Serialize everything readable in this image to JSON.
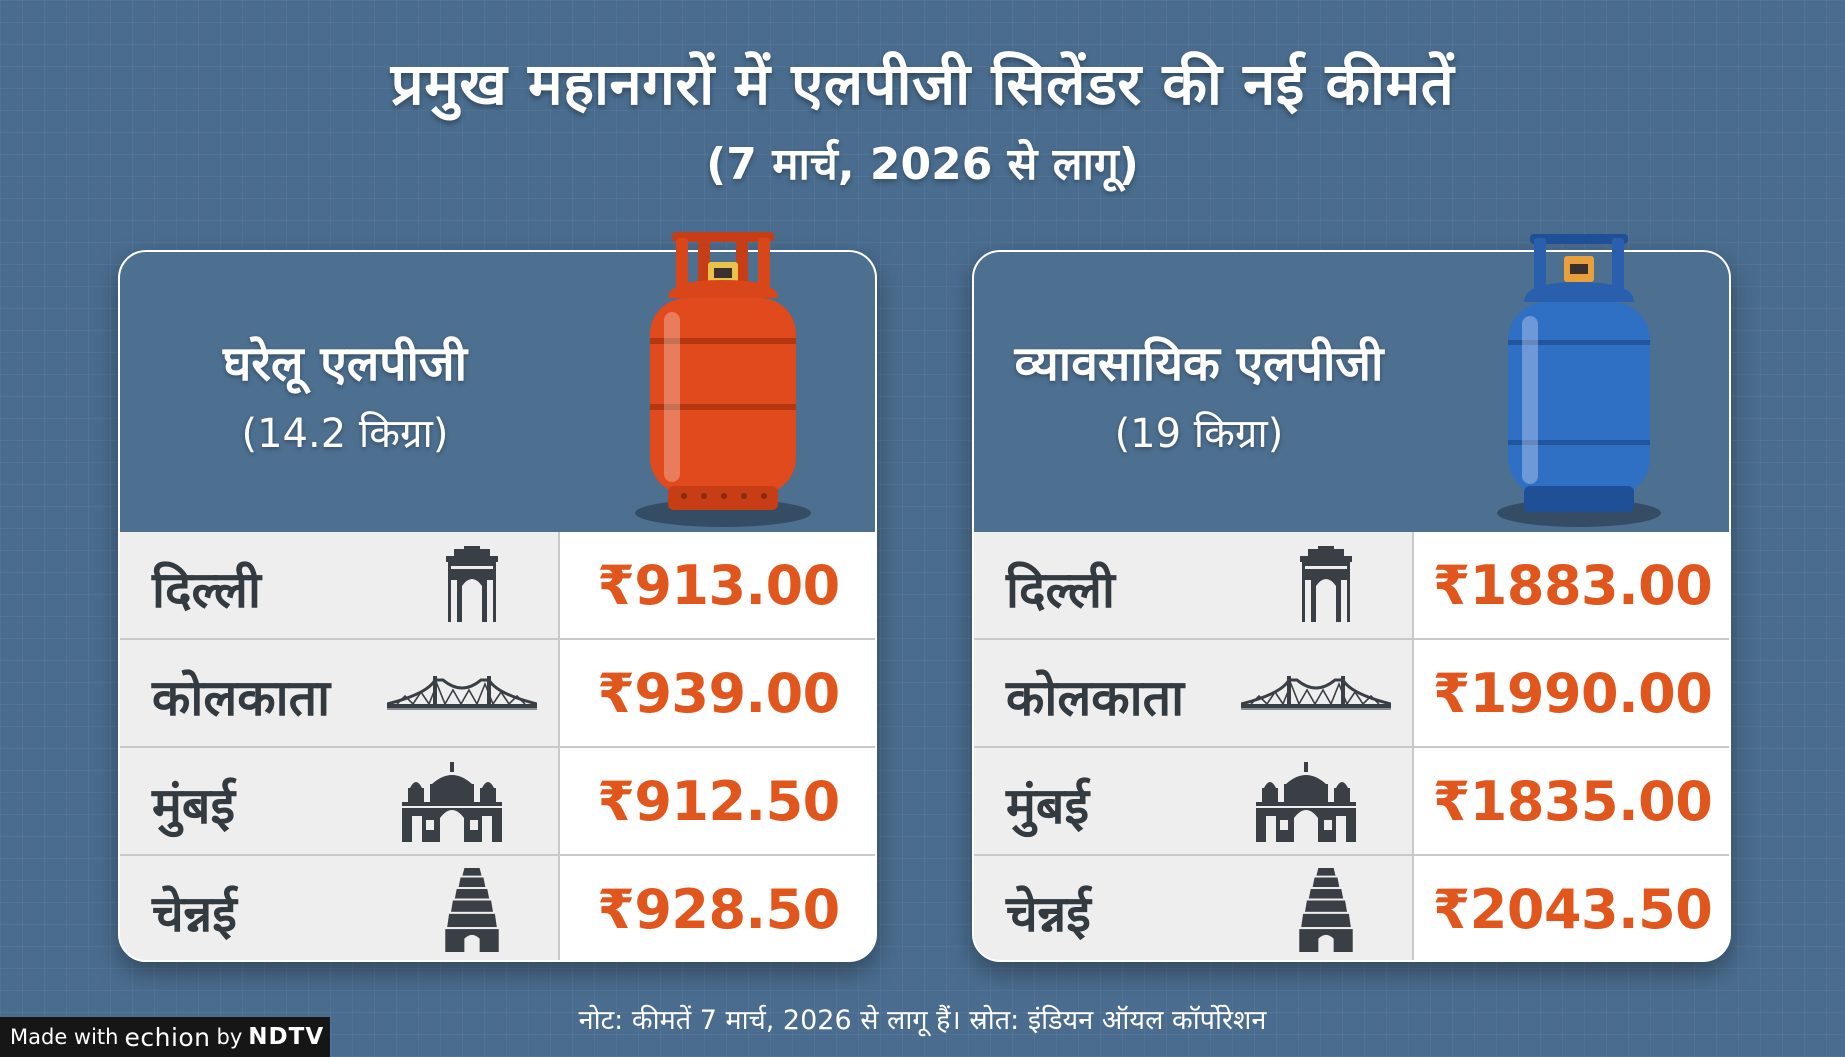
{
  "header": {
    "title": "प्रमुख महानगरों में एलपीजी सिलेंडर की नई कीमतें",
    "subtitle": "(7 मार्च, 2026 से लागू)"
  },
  "cards": [
    {
      "title": "घरेलू एलपीजी",
      "weight": "(14.2 किग्रा)",
      "cylinder_color": "#e04a1c",
      "rows": [
        {
          "city": "दिल्ली",
          "price": "₹913.00",
          "icon": "india-gate-icon"
        },
        {
          "city": "कोलकाता",
          "price": "₹939.00",
          "icon": "howrah-bridge-icon"
        },
        {
          "city": "मुंबई",
          "price": "₹912.50",
          "icon": "gateway-of-india-icon"
        },
        {
          "city": "चेन्नई",
          "price": "₹928.50",
          "icon": "temple-gopuram-icon"
        }
      ]
    },
    {
      "title": "व्यावसायिक एलपीजी",
      "weight": "(19 किग्रा)",
      "cylinder_color": "#2f6fc4",
      "rows": [
        {
          "city": "दिल्ली",
          "price": "₹1883.00",
          "icon": "india-gate-icon"
        },
        {
          "city": "कोलकाता",
          "price": "₹1990.00",
          "icon": "howrah-bridge-icon"
        },
        {
          "city": "मुंबई",
          "price": "₹1835.00",
          "icon": "gateway-of-india-icon"
        },
        {
          "city": "चेन्नई",
          "price": "₹2043.50",
          "icon": "temple-gopuram-icon"
        }
      ]
    }
  ],
  "footer": {
    "note": "नोट: कीमतें 7 मार्च, 2026 से लागू हैं। स्रोत: इंडियन ऑयल कॉर्पोरेशन"
  },
  "badge": {
    "made_with": "Made with",
    "echion": "echion",
    "by": "by",
    "ndtv": "NDTV"
  },
  "colors": {
    "background": "#4a6d8f",
    "price": "#e0561c",
    "city_text": "#333a40"
  }
}
